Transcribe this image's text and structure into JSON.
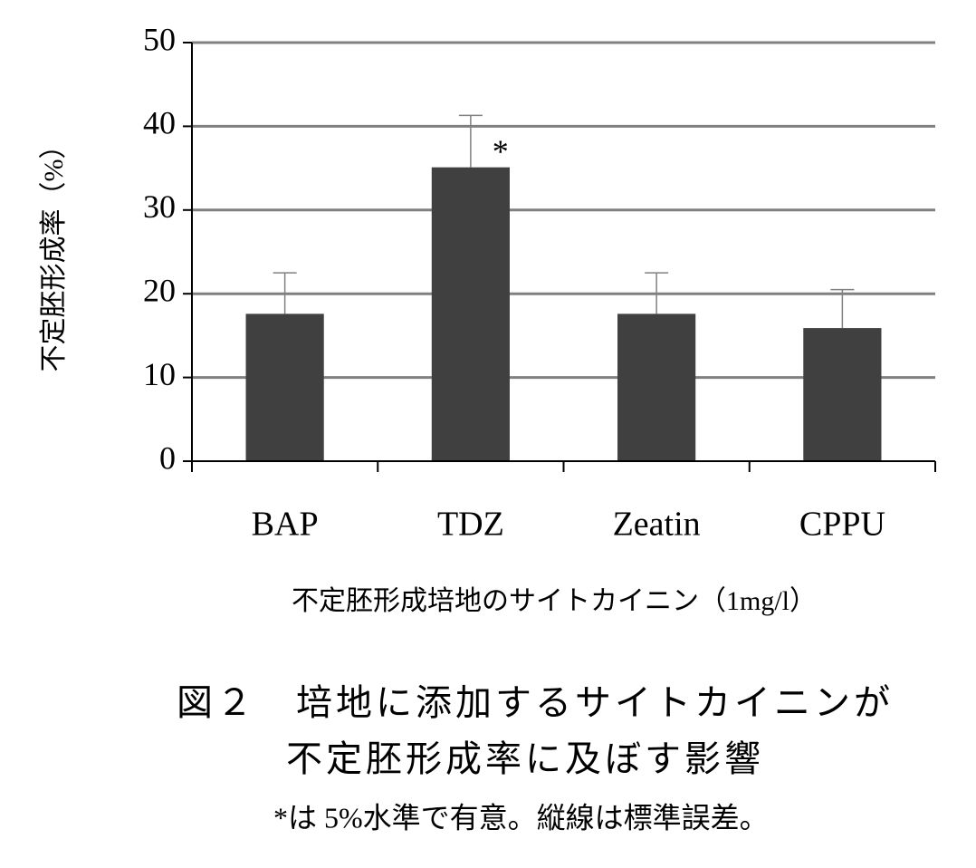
{
  "chart_data": {
    "type": "bar",
    "title": [
      "図２　培地に添加するサイトカイニンが",
      "不定胚形成率に及ぼす影響"
    ],
    "note": "*は 5%水準で有意。縦線は標準誤差。",
    "xlabel": "不定胚形成培地のサイトカイニン（1mg/l）",
    "ylabel": "不定胚形成率（%）",
    "categories": [
      "BAP",
      "TDZ",
      "Zeatin",
      "CPPU"
    ],
    "values": [
      17.6,
      35.1,
      17.6,
      15.9
    ],
    "errors": [
      4.9,
      6.2,
      4.9,
      4.6
    ],
    "annotations": [
      {
        "text": "*",
        "category": 1
      }
    ],
    "color": "#404040",
    "ylim": [
      0,
      50
    ],
    "yticks": [
      0,
      10,
      20,
      30,
      40,
      50
    ],
    "grid": true
  }
}
